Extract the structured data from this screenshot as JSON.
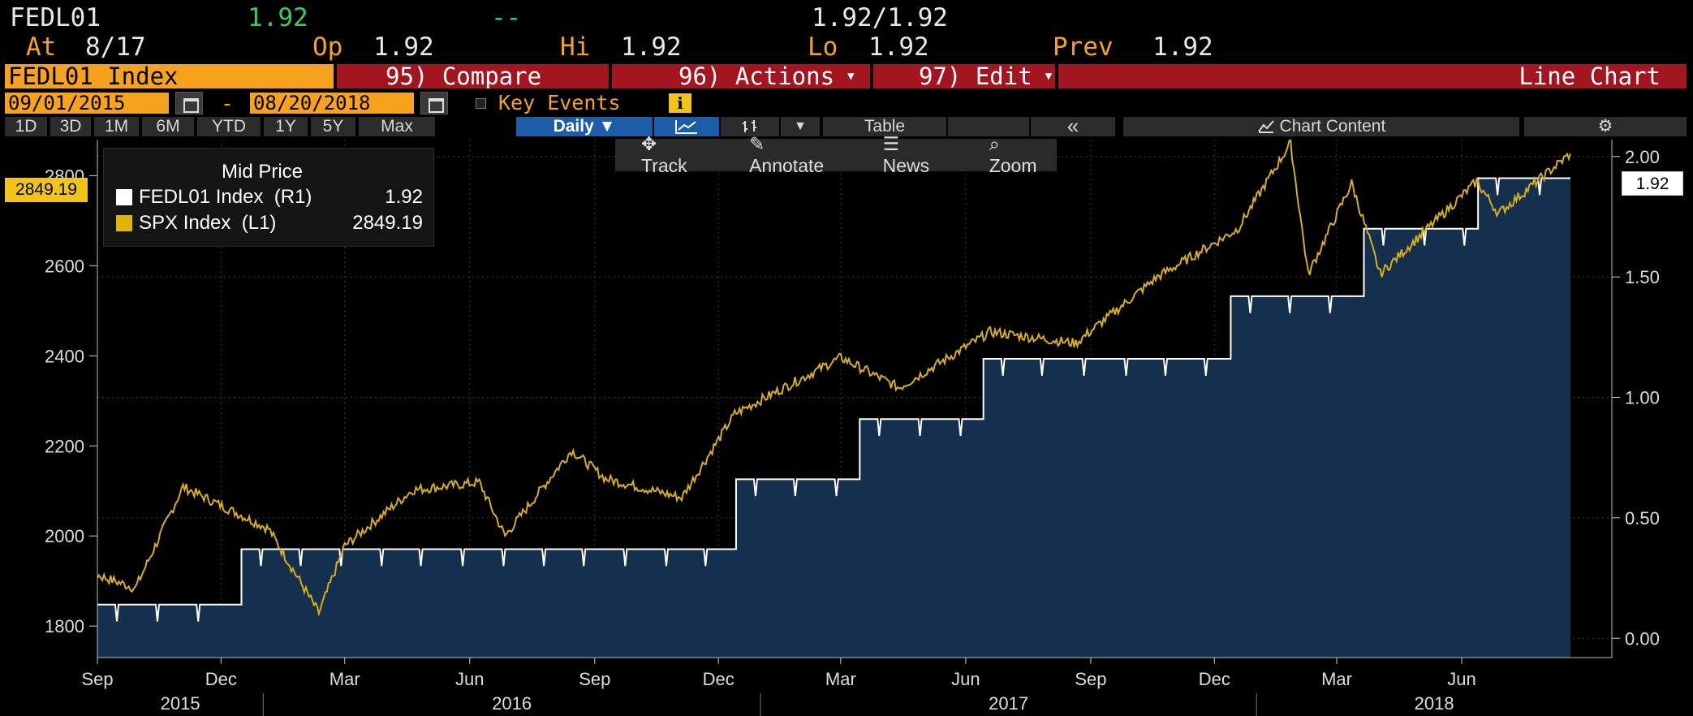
{
  "header": {
    "ticker": "FEDL01",
    "last": "1.92",
    "change": "--",
    "bid_ask": "1.92/1.92",
    "at_label": "At",
    "at_value": "8/17",
    "op_label": "Op",
    "op_value": "1.92",
    "hi_label": "Hi",
    "hi_value": "1.92",
    "lo_label": "Lo",
    "lo_value": "1.92",
    "prev_label": "Prev",
    "prev_value": "1.92"
  },
  "command_bar": {
    "security": "FEDL01 Index",
    "compare": "95) Compare",
    "actions": "96) Actions",
    "edit": "97) Edit",
    "chart_type": "Line Chart"
  },
  "dates": {
    "start": "09/01/2015",
    "separator": "-",
    "end": "08/20/2018",
    "key_events": "Key Events",
    "info_icon": "i"
  },
  "periods": [
    "1D",
    "3D",
    "1M",
    "6M",
    "YTD",
    "1Y",
    "5Y",
    "Max"
  ],
  "frequency": "Daily",
  "toolbar": {
    "table": "Table",
    "collapse": "«",
    "chart_content": "Chart Content"
  },
  "chart_tools": {
    "track": "Track",
    "annotate": "Annotate",
    "news": "News",
    "zoom": "Zoom"
  },
  "legend": {
    "title": "Mid Price",
    "series": [
      {
        "name": "FEDL01 Index  (R1)",
        "value": "1.92",
        "color": "#ffffff"
      },
      {
        "name": "SPX Index  (L1)",
        "value": "2849.19",
        "color": "#e0b600"
      }
    ]
  },
  "colors": {
    "accent": "#f7a21c",
    "command_red": "#a31620",
    "fed_fill": "#152f4d",
    "spx_line": "#d6ae1a"
  },
  "chart_data": {
    "type": "line",
    "x_range": [
      "2015-09-01",
      "2018-08-20"
    ],
    "month_ticks": [
      "Sep",
      "Dec",
      "Mar",
      "Jun",
      "Sep",
      "Dec",
      "Mar",
      "Jun",
      "Sep",
      "Dec",
      "Mar",
      "Jun"
    ],
    "year_labels": [
      "2015",
      "2016",
      "2017",
      "2018"
    ],
    "left_axis": {
      "ticks": [
        "1800",
        "2000",
        "2200",
        "2400",
        "2600",
        "2800"
      ],
      "range": [
        1730,
        2880
      ]
    },
    "right_axis": {
      "ticks": [
        "0.00",
        "0.50",
        "1.00",
        "1.50",
        "2.00"
      ],
      "range": [
        -0.08,
        2.07
      ]
    },
    "last_values": {
      "spx": "2849.19",
      "fed": "1.92"
    },
    "series": [
      {
        "name": "FEDL01 Index",
        "axis": "right",
        "x": [
          "2015-09-01",
          "2015-12-16",
          "2016-12-14",
          "2017-03-15",
          "2017-06-14",
          "2017-12-13",
          "2018-03-21",
          "2018-06-13",
          "2018-08-20"
        ],
        "values": [
          0.14,
          0.37,
          0.66,
          0.91,
          1.16,
          1.42,
          1.7,
          1.91,
          1.92
        ]
      },
      {
        "name": "SPX Index",
        "axis": "left",
        "x": [
          "2015-09-01",
          "2015-09-29",
          "2015-11-03",
          "2016-01-05",
          "2016-02-11",
          "2016-03-01",
          "2016-04-20",
          "2016-06-08",
          "2016-06-27",
          "2016-08-15",
          "2016-09-09",
          "2016-11-04",
          "2016-12-13",
          "2017-03-01",
          "2017-04-13",
          "2017-06-19",
          "2017-08-21",
          "2017-10-20",
          "2017-12-18",
          "2018-01-26",
          "2018-02-08",
          "2018-03-12",
          "2018-04-02",
          "2018-06-12",
          "2018-06-28",
          "2018-08-20"
        ],
        "values": [
          1913,
          1884,
          2109,
          2016,
          1829,
          1978,
          2102,
          2119,
          2000,
          2190,
          2127,
          2085,
          2271,
          2396,
          2329,
          2453,
          2428,
          2575,
          2681,
          2872,
          2581,
          2783,
          2582,
          2787,
          2716,
          2849
        ]
      }
    ]
  }
}
